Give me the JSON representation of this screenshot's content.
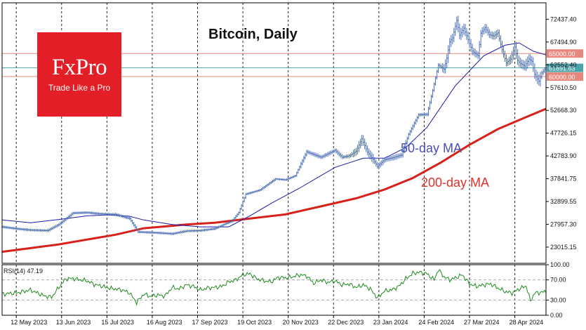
{
  "logo": {
    "brand": "FxPro",
    "tagline": "Trade Like a Pro"
  },
  "chart_data": {
    "type": "line",
    "title": "Bitcoin, Daily",
    "subtitle": "",
    "price_axis_ticks": [
      "72437.40",
      "67494.90",
      "62552.40",
      "57610.50",
      "52668.30",
      "47726.15",
      "42783.90",
      "37841.75",
      "32899.55",
      "27957.30",
      "23015.15"
    ],
    "time_axis_ticks": [
      "12 May 2023",
      "13 Jun 2023",
      "15 Jul 2023",
      "16 Aug 2023",
      "17 Sep 2023",
      "19 Oct 2023",
      "20 Nov 2023",
      "22 Dec 2023",
      "23 Jan 2024",
      "24 Feb 2024",
      "27 Mar 2024",
      "28 Apr 2024"
    ],
    "ylim": [
      19500,
      76000
    ],
    "horizontal_levels": [
      {
        "label": "65000.00",
        "value": 65000,
        "color": "#e8877c"
      },
      {
        "label": "61891.63",
        "value": 61891.63,
        "color": "#4aa3a8"
      },
      {
        "label": "60000.00",
        "value": 60000,
        "color": "#e8877c"
      }
    ],
    "ma_labels": [
      {
        "text": "50-day MA",
        "color": "#4b50b4"
      },
      {
        "text": "200-day MA",
        "color": "#e0332c"
      }
    ],
    "price_series_color": "#4a6fb5",
    "ma50_color": "#1a1aa8",
    "ma200_color": "#d7221c",
    "price_close": [
      [
        0,
        27400
      ],
      [
        10,
        27000
      ],
      [
        20,
        26700
      ],
      [
        32,
        26600
      ],
      [
        40,
        27900
      ],
      [
        50,
        30400
      ],
      [
        60,
        30500
      ],
      [
        70,
        30200
      ],
      [
        80,
        30100
      ],
      [
        90,
        29200
      ],
      [
        96,
        26300
      ],
      [
        110,
        26100
      ],
      [
        120,
        25900
      ],
      [
        130,
        26500
      ],
      [
        140,
        26600
      ],
      [
        150,
        27000
      ],
      [
        157,
        28000
      ],
      [
        162,
        28600
      ],
      [
        167,
        30500
      ],
      [
        172,
        34500
      ],
      [
        182,
        35400
      ],
      [
        193,
        37800
      ],
      [
        200,
        37600
      ],
      [
        207,
        38500
      ],
      [
        215,
        43700
      ],
      [
        225,
        42500
      ],
      [
        235,
        44000
      ],
      [
        240,
        42500
      ],
      [
        245,
        42800
      ],
      [
        250,
        43800
      ],
      [
        254,
        46500
      ],
      [
        258,
        43600
      ],
      [
        262,
        42000
      ],
      [
        265,
        40500
      ],
      [
        270,
        42000
      ],
      [
        276,
        42400
      ],
      [
        282,
        43000
      ],
      [
        287,
        47500
      ],
      [
        294,
        51700
      ],
      [
        300,
        51800
      ],
      [
        304,
        57000
      ],
      [
        308,
        62500
      ],
      [
        312,
        61600
      ],
      [
        314,
        64000
      ],
      [
        316,
        67500
      ],
      [
        318,
        68400
      ],
      [
        321,
        72200
      ],
      [
        323,
        69000
      ],
      [
        326,
        70500
      ],
      [
        329,
        68000
      ],
      [
        332,
        65500
      ],
      [
        336,
        64500
      ],
      [
        338,
        69400
      ],
      [
        341,
        70600
      ],
      [
        344,
        69100
      ],
      [
        347,
        68800
      ],
      [
        350,
        69500
      ],
      [
        353,
        65800
      ],
      [
        356,
        63000
      ],
      [
        359,
        63800
      ],
      [
        362,
        66400
      ],
      [
        364,
        63500
      ],
      [
        366,
        62800
      ],
      [
        369,
        62300
      ],
      [
        372,
        63800
      ],
      [
        374,
        63300
      ],
      [
        376,
        60500
      ],
      [
        379,
        59000
      ],
      [
        381,
        60800
      ],
      [
        384,
        61900
      ]
    ],
    "price_range": [
      [
        0,
        28500,
        26200
      ],
      [
        60,
        31700,
        29400
      ],
      [
        120,
        27100,
        24900
      ],
      [
        180,
        36000,
        34200
      ],
      [
        240,
        44700,
        41500
      ],
      [
        254,
        49500,
        43000
      ],
      [
        270,
        43500,
        39200
      ],
      [
        300,
        53000,
        50100
      ],
      [
        321,
        73800,
        66000
      ],
      [
        341,
        73500,
        67300
      ],
      [
        376,
        64700,
        56500
      ],
      [
        384,
        63400,
        59300
      ]
    ],
    "ma50": [
      [
        0,
        28900
      ],
      [
        20,
        28300
      ],
      [
        40,
        29000
      ],
      [
        60,
        29800
      ],
      [
        75,
        30000
      ],
      [
        90,
        29700
      ],
      [
        100,
        28900
      ],
      [
        120,
        27900
      ],
      [
        140,
        27400
      ],
      [
        160,
        27400
      ],
      [
        175,
        29800
      ],
      [
        190,
        32500
      ],
      [
        210,
        35800
      ],
      [
        235,
        40300
      ],
      [
        255,
        42300
      ],
      [
        270,
        42300
      ],
      [
        285,
        44600
      ],
      [
        300,
        49000
      ],
      [
        320,
        58000
      ],
      [
        340,
        64500
      ],
      [
        355,
        66800
      ],
      [
        365,
        67300
      ],
      [
        375,
        65500
      ],
      [
        384,
        64700
      ]
    ],
    "ma200": [
      [
        0,
        22000
      ],
      [
        40,
        23600
      ],
      [
        80,
        25700
      ],
      [
        100,
        27100
      ],
      [
        130,
        27900
      ],
      [
        150,
        28300
      ],
      [
        175,
        29200
      ],
      [
        200,
        30100
      ],
      [
        230,
        32200
      ],
      [
        250,
        33600
      ],
      [
        270,
        35500
      ],
      [
        290,
        38000
      ],
      [
        310,
        41400
      ],
      [
        330,
        45200
      ],
      [
        350,
        48600
      ],
      [
        370,
        51200
      ],
      [
        384,
        53000
      ]
    ],
    "rsi": {
      "label": "RSI(14) 47.19",
      "ylim": [
        0,
        100
      ],
      "levels": [
        30,
        70
      ],
      "ticks": [
        "100.00",
        "70.00",
        "30.00",
        "0.00"
      ],
      "values": [
        [
          0,
          42
        ],
        [
          10,
          44
        ],
        [
          20,
          50
        ],
        [
          30,
          38
        ],
        [
          35,
          36
        ],
        [
          40,
          55
        ],
        [
          45,
          72
        ],
        [
          50,
          73
        ],
        [
          55,
          70
        ],
        [
          60,
          68
        ],
        [
          65,
          61
        ],
        [
          70,
          58
        ],
        [
          75,
          54
        ],
        [
          80,
          52
        ],
        [
          85,
          50
        ],
        [
          90,
          44
        ],
        [
          95,
          25
        ],
        [
          100,
          42
        ],
        [
          105,
          37
        ],
        [
          110,
          40
        ],
        [
          115,
          38
        ],
        [
          120,
          55
        ],
        [
          125,
          52
        ],
        [
          130,
          60
        ],
        [
          135,
          57
        ],
        [
          140,
          50
        ],
        [
          145,
          54
        ],
        [
          150,
          55
        ],
        [
          155,
          57
        ],
        [
          160,
          66
        ],
        [
          165,
          70
        ],
        [
          170,
          80
        ],
        [
          175,
          82
        ],
        [
          180,
          72
        ],
        [
          185,
          68
        ],
        [
          190,
          66
        ],
        [
          195,
          75
        ],
        [
          200,
          74
        ],
        [
          205,
          76
        ],
        [
          210,
          80
        ],
        [
          215,
          78
        ],
        [
          220,
          63
        ],
        [
          225,
          70
        ],
        [
          230,
          65
        ],
        [
          235,
          68
        ],
        [
          240,
          60
        ],
        [
          245,
          62
        ],
        [
          250,
          55
        ],
        [
          255,
          60
        ],
        [
          260,
          52
        ],
        [
          265,
          34
        ],
        [
          270,
          48
        ],
        [
          275,
          50
        ],
        [
          280,
          57
        ],
        [
          285,
          72
        ],
        [
          290,
          83
        ],
        [
          295,
          85
        ],
        [
          300,
          82
        ],
        [
          305,
          70
        ],
        [
          308,
          90
        ],
        [
          312,
          76
        ],
        [
          316,
          70
        ],
        [
          320,
          74
        ],
        [
          325,
          80
        ],
        [
          330,
          62
        ],
        [
          335,
          57
        ],
        [
          340,
          60
        ],
        [
          345,
          62
        ],
        [
          350,
          54
        ],
        [
          355,
          47
        ],
        [
          360,
          44
        ],
        [
          365,
          52
        ],
        [
          370,
          58
        ],
        [
          373,
          28
        ],
        [
          376,
          44
        ],
        [
          380,
          45
        ],
        [
          384,
          47
        ]
      ]
    }
  }
}
